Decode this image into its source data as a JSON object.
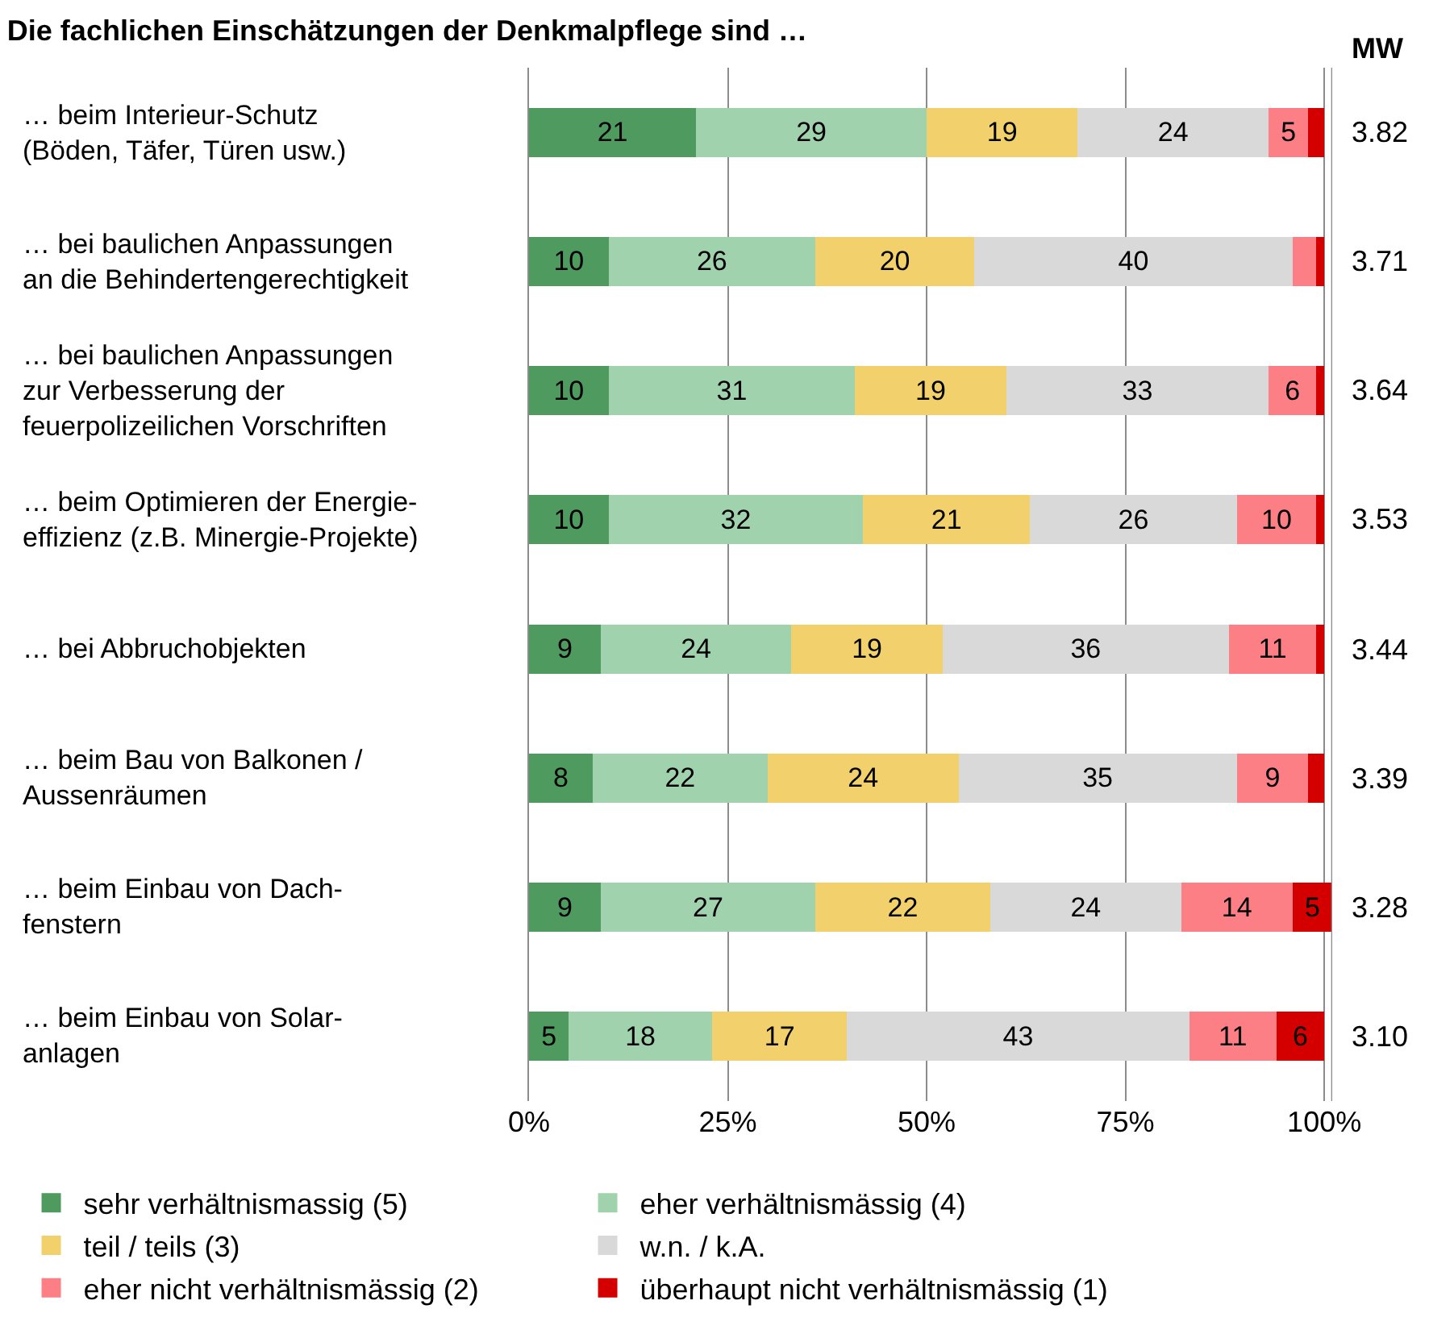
{
  "chart_data": {
    "type": "bar",
    "orientation": "horizontal",
    "stacked": true,
    "title": "Die fachlichen Einschätzungen der Denkmalpflege sind …",
    "categories": [
      "… beim Interieur-Schutz\n(Böden, Täfer, Türen usw.)",
      "… bei baulichen Anpassungen\nan die Behindertengerechtigkeit",
      "… bei baulichen Anpassungen\nzur Verbesserung der\nfeuerpolizeilichen Vorschriften",
      "… beim Optimieren der Energie-\neffizienz (z.B. Minergie-Projekte)",
      "… bei Abbruchobjekten",
      "… beim Bau von Balkonen /\nAussenräumen",
      "… beim Einbau von Dach-\nfenstern",
      "… beim Einbau von Solar-\nanlagen"
    ],
    "series": [
      {
        "name": "sehr verhältnismassig (5)",
        "color": "#4e9a5f",
        "values": [
          21,
          10,
          10,
          10,
          9,
          8,
          9,
          5
        ],
        "value_labels": [
          "21",
          "10",
          "10",
          "10",
          "9",
          "8",
          "9",
          "5"
        ]
      },
      {
        "name": "eher verhältnismässig (4)",
        "color": "#a0d3ad",
        "values": [
          29,
          26,
          31,
          32,
          24,
          22,
          27,
          18
        ],
        "value_labels": [
          "29",
          "26",
          "31",
          "32",
          "24",
          "22",
          "27",
          "18"
        ]
      },
      {
        "name": "teil / teils (3)",
        "color": "#f2d06b",
        "values": [
          19,
          20,
          19,
          21,
          19,
          24,
          22,
          17
        ],
        "value_labels": [
          "19",
          "20",
          "19",
          "21",
          "19",
          "24",
          "22",
          "17"
        ]
      },
      {
        "name": "w.n. / k.A.",
        "color": "#d9d9d9",
        "values": [
          24,
          40,
          33,
          26,
          36,
          35,
          24,
          43
        ],
        "value_labels": [
          "24",
          "40",
          "33",
          "26",
          "36",
          "35",
          "24",
          "43"
        ]
      },
      {
        "name": "eher nicht verhältnismässig (2)",
        "color": "#fb7f84",
        "values": [
          5,
          3,
          6,
          10,
          11,
          9,
          14,
          11
        ],
        "value_labels": [
          "5",
          null,
          "6",
          "10",
          "11",
          "9",
          "14",
          "11"
        ]
      },
      {
        "name": "überhaupt nicht verhältnismässig (1)",
        "color": "#d40000",
        "values": [
          2,
          1,
          1,
          1,
          1,
          2,
          5,
          6
        ],
        "value_labels": [
          null,
          null,
          null,
          null,
          null,
          null,
          "5",
          "6"
        ]
      }
    ],
    "xlim": [
      0,
      101
    ],
    "xticks": [
      {
        "value": 0,
        "label": "0%"
      },
      {
        "value": 25,
        "label": "25%"
      },
      {
        "value": 50,
        "label": "50%"
      },
      {
        "value": 75,
        "label": "75%"
      },
      {
        "value": 100,
        "label": "100%"
      }
    ],
    "grid": "x",
    "legend": "bottom",
    "annotations": [
      "MW",
      "3.82",
      "3.71",
      "3.64",
      "3.53",
      "3.44",
      "3.39",
      "3.28",
      "3.10"
    ]
  }
}
